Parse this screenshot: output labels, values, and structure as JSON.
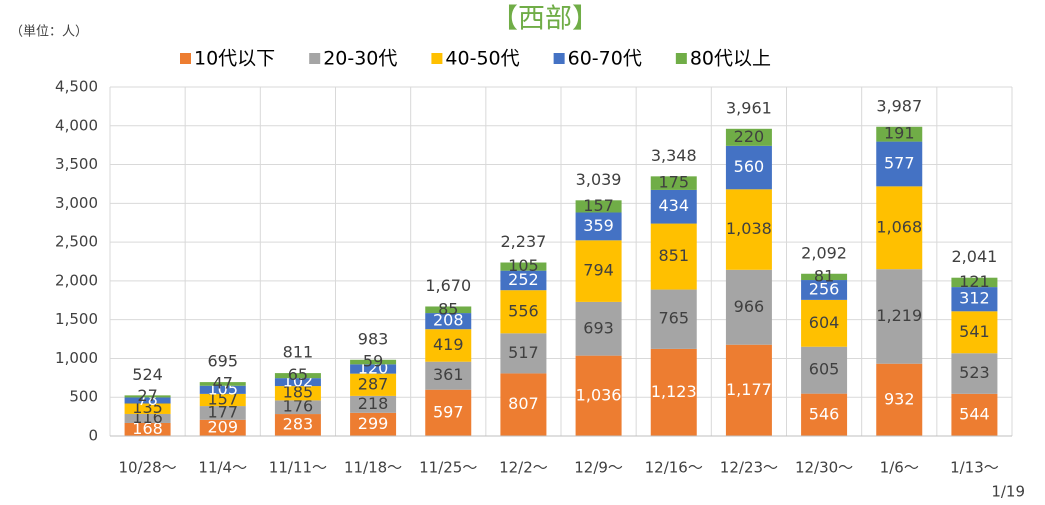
{
  "unit_note": "（単位：人）",
  "footnote": "1/19",
  "chart_data": {
    "type": "stacked_bar",
    "title": "【西部】",
    "title_color": "#70AD47",
    "categories": [
      "10/28〜",
      "11/4〜",
      "11/11〜",
      "11/18〜",
      "11/25〜",
      "12/2〜",
      "12/9〜",
      "12/16〜",
      "12/23〜",
      "12/30〜",
      "1/6〜",
      "1/13〜"
    ],
    "series": [
      {
        "name": "10代以下",
        "color": "#ED7D31",
        "label_color": "#ffffff",
        "values": [
          168,
          209,
          283,
          299,
          597,
          807,
          1036,
          1123,
          1177,
          546,
          932,
          544
        ],
        "value_labels": [
          "168",
          "209",
          "283",
          "299",
          "597",
          "807",
          "1,036",
          "1,123",
          "1,177",
          "546",
          "932",
          "544"
        ]
      },
      {
        "name": "20-30代",
        "color": "#A5A5A5",
        "label_color": "#404040",
        "values": [
          116,
          177,
          176,
          218,
          361,
          517,
          693,
          765,
          966,
          605,
          1219,
          523
        ],
        "value_labels": [
          "116",
          "177",
          "176",
          "218",
          "361",
          "517",
          "693",
          "765",
          "966",
          "605",
          "1,219",
          "523"
        ]
      },
      {
        "name": "40-50代",
        "color": "#FFC000",
        "label_color": "#404040",
        "values": [
          135,
          157,
          185,
          287,
          419,
          556,
          794,
          851,
          1038,
          604,
          1068,
          541
        ],
        "value_labels": [
          "135",
          "157",
          "185",
          "287",
          "419",
          "556",
          "794",
          "851",
          "1,038",
          "604",
          "1,068",
          "541"
        ]
      },
      {
        "name": "60-70代",
        "color": "#4472C4",
        "label_color": "#ffffff",
        "values": [
          78,
          105,
          102,
          120,
          208,
          252,
          359,
          434,
          560,
          256,
          577,
          312
        ],
        "value_labels": [
          "78",
          "105",
          "102",
          "120",
          "208",
          "252",
          "359",
          "434",
          "560",
          "256",
          "577",
          "312"
        ]
      },
      {
        "name": "80代以上",
        "color": "#70AD47",
        "label_color": "#404040",
        "values": [
          27,
          47,
          65,
          59,
          85,
          105,
          157,
          175,
          220,
          81,
          191,
          121
        ],
        "value_labels": [
          "27",
          "47",
          "65",
          "59",
          "85",
          "105",
          "157",
          "175",
          "220",
          "81",
          "191",
          "121"
        ]
      }
    ],
    "totals": [
      524,
      695,
      811,
      983,
      1670,
      2237,
      3039,
      3348,
      3961,
      2092,
      3987,
      2041
    ],
    "total_labels": [
      "524",
      "695",
      "811",
      "983",
      "1,670",
      "2,237",
      "3,039",
      "3,348",
      "3,961",
      "2,092",
      "3,987",
      "2,041"
    ],
    "ylim": [
      0,
      4500
    ],
    "yticks": [
      0,
      500,
      {
        "value": 1000,
        "label": "1,000"
      },
      {
        "value": 1500,
        "label": "1,500"
      },
      {
        "value": 2000,
        "label": "2,000"
      },
      {
        "value": 2500,
        "label": "2,500"
      },
      {
        "value": 3000,
        "label": "3,000"
      },
      {
        "value": 3500,
        "label": "3,500"
      },
      {
        "value": 4000,
        "label": "4,000"
      },
      {
        "value": 4500,
        "label": "4,500"
      }
    ],
    "grid": true,
    "legend": "top"
  }
}
